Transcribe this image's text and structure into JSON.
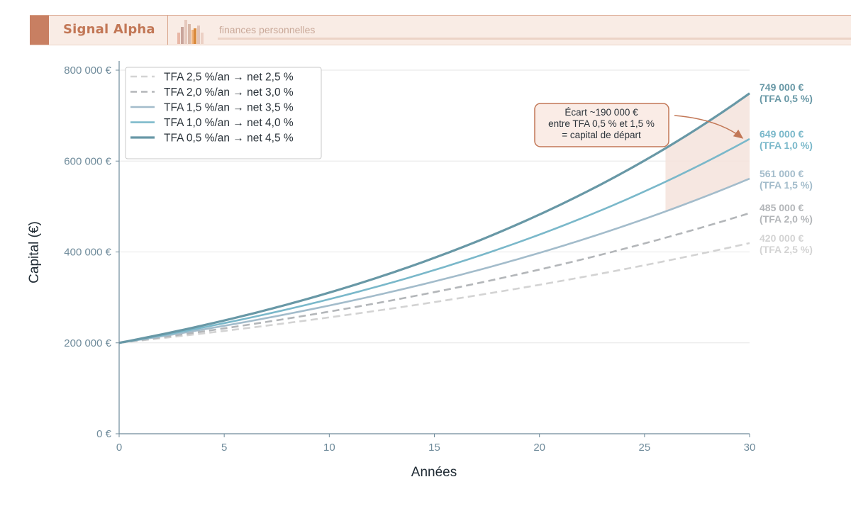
{
  "header": {
    "brand": "Signal Alpha",
    "tagline": "finances personnelles"
  },
  "colors": {
    "accent": "#c87f62",
    "brand_text": "#c27756",
    "header_bg": "#f9ece5",
    "axis": "#6f8b9b",
    "band": "#f5e3dc",
    "annotation_border": "#c27756"
  },
  "chart_data": {
    "type": "line",
    "xlabel": "Années",
    "ylabel": "Capital (€)",
    "xlim": [
      0,
      30
    ],
    "ylim": [
      0,
      800000
    ],
    "xticks": [
      0,
      5,
      10,
      15,
      20,
      25,
      30
    ],
    "xtick_labels": [
      "0",
      "5",
      "10",
      "15",
      "20",
      "25",
      "30"
    ],
    "yticks": [
      0,
      200000,
      400000,
      600000,
      800000
    ],
    "ytick_labels": [
      "0 €",
      "200 000 €",
      "400 000 €",
      "600 000 €",
      "800 000 €"
    ],
    "grid": true,
    "legend_position": "top-left",
    "initial_capital": 200000,
    "series": [
      {
        "name": "TFA 2,5 %/an  →  net 2,5 %",
        "rate": 0.025,
        "end_value": 420000,
        "end_label": "420 000 €",
        "end_label_sub": "(TFA 2,5 %)",
        "color": "#d3d3d3",
        "dashed": true
      },
      {
        "name": "TFA 2,0 %/an  →  net 3,0 %",
        "rate": 0.03,
        "end_value": 485000,
        "end_label": "485 000 €",
        "end_label_sub": "(TFA 2,0 %)",
        "color": "#b3b6b9",
        "dashed": true
      },
      {
        "name": "TFA 1,5 %/an  →  net 3,5 %",
        "rate": 0.035,
        "end_value": 561000,
        "end_label": "561 000 €",
        "end_label_sub": "(TFA 1,5 %)",
        "color": "#a3bccb",
        "dashed": false
      },
      {
        "name": "TFA 1,0 %/an  →  net 4,0 %",
        "rate": 0.04,
        "end_value": 649000,
        "end_label": "649 000 €",
        "end_label_sub": "(TFA 1,0 %)",
        "color": "#7ab8ca",
        "dashed": false
      },
      {
        "name": "TFA 0,5 %/an  →  net 4,5 %",
        "rate": 0.045,
        "end_value": 749000,
        "end_label": "749 000 €",
        "end_label_sub": "(TFA 0,5 %)",
        "color": "#6898a6",
        "dashed": false
      }
    ],
    "band": {
      "x_start": 26,
      "x_end": 30,
      "upper_series": 4,
      "lower_series": 2
    },
    "annotation": {
      "lines": [
        "Écart  ~190 000 €",
        "entre TFA 0,5 % et 1,5 %",
        "= capital de départ"
      ],
      "arrow_target": {
        "x": 30,
        "y": 660000
      }
    }
  }
}
